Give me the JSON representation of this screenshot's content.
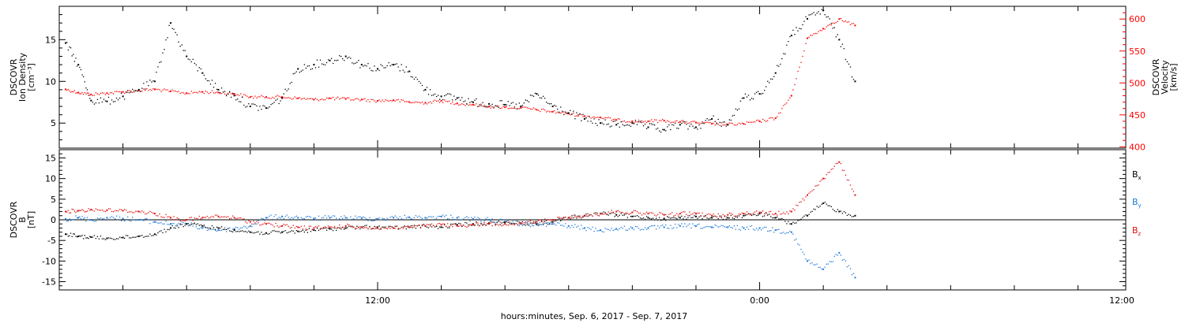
{
  "chart_data": [
    {
      "type": "scatter",
      "panel": "top",
      "ylabel": [
        "DSCOVR",
        "Ion Density",
        "[cm⁻³]"
      ],
      "ylabel2": [
        "DSCOVR",
        "Velocity",
        "[km/s]"
      ],
      "yticks_left": [
        "5",
        "10",
        "15"
      ],
      "yticks_right": [
        "400",
        "450",
        "500",
        "550",
        "600"
      ],
      "ylim_left": [
        2,
        19
      ],
      "ylim_right": [
        398,
        620
      ],
      "x_unit": "hours since 2017-09-06 02:00",
      "xlim": [
        0,
        33.5
      ],
      "colors": {
        "density": "#000000",
        "velocity": "#ff0000"
      },
      "series": [
        {
          "name": "Ion Density",
          "axis": "left",
          "x": [
            0.2,
            0.6,
            1.0,
            1.5,
            2.0,
            2.5,
            3.0,
            3.5,
            4.0,
            4.5,
            5.0,
            5.5,
            6.0,
            6.5,
            7.0,
            7.5,
            8.0,
            8.5,
            9.0,
            9.5,
            10.0,
            10.5,
            11.0,
            11.5,
            12.0,
            12.5,
            13.0,
            13.5,
            14.0,
            14.5,
            15.0,
            15.5,
            16.0,
            16.5,
            17.0,
            17.5,
            18.0,
            18.5,
            19.0,
            19.5,
            20.0,
            20.5,
            21.0,
            21.5,
            22.0,
            22.5,
            23.0,
            23.5,
            24.0,
            24.5,
            25.0
          ],
          "values": [
            14.6,
            12.0,
            7.7,
            7.6,
            8.2,
            9.0,
            10.0,
            17.0,
            13.0,
            11.0,
            9.0,
            8.3,
            7.0,
            6.8,
            8.0,
            11.5,
            12.0,
            12.5,
            13.0,
            12.0,
            11.5,
            12.0,
            11.2,
            9.0,
            8.2,
            8.0,
            7.5,
            7.3,
            7.2,
            7.0,
            8.5,
            7.0,
            6.2,
            5.5,
            5.0,
            4.8,
            5.0,
            4.5,
            4.2,
            4.8,
            4.5,
            5.5,
            4.8,
            8.0,
            8.5,
            11.0,
            15.5,
            17.5,
            18.5,
            15.0,
            10.0
          ]
        },
        {
          "name": "Velocity",
          "axis": "right",
          "x": [
            0.2,
            0.6,
            1.0,
            1.5,
            2.0,
            2.5,
            3.0,
            3.5,
            4.0,
            4.5,
            5.0,
            5.5,
            6.0,
            6.5,
            7.0,
            7.5,
            8.0,
            8.5,
            9.0,
            9.5,
            10.0,
            10.5,
            11.0,
            11.5,
            12.0,
            12.5,
            13.0,
            13.5,
            14.0,
            14.5,
            15.0,
            15.5,
            16.0,
            16.5,
            17.0,
            17.5,
            18.0,
            18.5,
            19.0,
            19.5,
            20.0,
            20.5,
            21.0,
            21.5,
            22.0,
            22.5,
            23.0,
            23.5,
            24.0,
            24.5,
            25.0
          ],
          "values": [
            490,
            485,
            482,
            484,
            486,
            488,
            490,
            487,
            484,
            486,
            485,
            483,
            478,
            478,
            478,
            476,
            474,
            476,
            475,
            474,
            472,
            473,
            470,
            469,
            472,
            468,
            466,
            463,
            462,
            461,
            458,
            455,
            452,
            448,
            446,
            442,
            440,
            440,
            441,
            439,
            438,
            436,
            435,
            436,
            440,
            445,
            480,
            570,
            585,
            600,
            590
          ]
        }
      ]
    },
    {
      "type": "scatter",
      "panel": "bottom",
      "ylabel": [
        "DSCOVR",
        "B",
        "[nT]"
      ],
      "yticks": [
        "-15",
        "-10",
        "-5",
        "0",
        "5",
        "10",
        "15"
      ],
      "ylim": [
        -17,
        17
      ],
      "x_unit": "hours since 2017-09-06 02:00",
      "xlim": [
        0,
        33.5
      ],
      "xticks": [
        "12:00",
        "0:00",
        "12:00"
      ],
      "xtick_positions": [
        10,
        22,
        34
      ],
      "xlabel": "hours:minutes, Sep.  6, 2017 - Sep.  7, 2017",
      "colors": {
        "Bx": "#000000",
        "By": "#1e78d8",
        "Bz": "#e01010"
      },
      "series": [
        {
          "name": "Bx",
          "label": "B",
          "sub": "x",
          "x": [
            0.2,
            0.6,
            1.0,
            1.5,
            2.0,
            2.5,
            3.0,
            3.5,
            4.0,
            4.5,
            5.0,
            5.5,
            6.0,
            6.5,
            7.0,
            7.5,
            8.0,
            8.5,
            9.0,
            9.5,
            10.0,
            10.5,
            11.0,
            11.5,
            12.0,
            12.5,
            13.0,
            13.5,
            14.0,
            14.5,
            15.0,
            15.5,
            16.0,
            16.5,
            17.0,
            17.5,
            18.0,
            18.5,
            19.0,
            19.5,
            20.0,
            20.5,
            21.0,
            21.5,
            22.0,
            22.5,
            23.0,
            23.5,
            24.0,
            24.5,
            25.0
          ],
          "values": [
            -3.5,
            -4.0,
            -4.2,
            -4.5,
            -4.3,
            -4.0,
            -3.5,
            -2.0,
            -1.0,
            -1.5,
            -2.0,
            -2.5,
            -3.0,
            -3.2,
            -3.0,
            -2.8,
            -2.5,
            -2.2,
            -2.0,
            -1.8,
            -1.8,
            -2.0,
            -1.8,
            -1.5,
            -1.8,
            -1.2,
            -1.0,
            -0.8,
            -0.6,
            -0.8,
            -1.0,
            -0.5,
            0.5,
            1.0,
            1.5,
            1.2,
            0.8,
            0.5,
            0.3,
            0.5,
            0.8,
            0.5,
            0.5,
            1.0,
            1.5,
            0.5,
            -1.0,
            1.0,
            4.0,
            2.0,
            1.0
          ]
        },
        {
          "name": "By",
          "label": "B",
          "sub": "y",
          "x": [
            0.2,
            0.6,
            1.0,
            1.5,
            2.0,
            2.5,
            3.0,
            3.5,
            4.0,
            4.5,
            5.0,
            5.5,
            6.0,
            6.5,
            7.0,
            7.5,
            8.0,
            8.5,
            9.0,
            9.5,
            10.0,
            10.5,
            11.0,
            11.5,
            12.0,
            12.5,
            13.0,
            13.5,
            14.0,
            14.5,
            15.0,
            15.5,
            16.0,
            16.5,
            17.0,
            17.5,
            18.0,
            18.5,
            19.0,
            19.5,
            20.0,
            20.5,
            21.0,
            21.5,
            22.0,
            22.5,
            23.0,
            23.5,
            24.0,
            24.5,
            25.0
          ],
          "values": [
            0.2,
            0.5,
            0.0,
            0.5,
            0.3,
            0.0,
            -0.5,
            -1.0,
            -1.0,
            -2.0,
            -2.5,
            -2.2,
            -1.5,
            0.5,
            0.8,
            0.5,
            0.3,
            0.5,
            0.5,
            0.4,
            0.2,
            0.5,
            0.6,
            0.5,
            0.8,
            0.5,
            0.2,
            0.0,
            -0.5,
            -1.0,
            -1.2,
            -1.0,
            -1.5,
            -2.0,
            -2.5,
            -2.2,
            -2.0,
            -2.0,
            -1.8,
            -1.5,
            -1.5,
            -1.8,
            -1.8,
            -2.0,
            -2.0,
            -2.5,
            -3.0,
            -10.0,
            -12.0,
            -8.0,
            -14.0
          ]
        },
        {
          "name": "Bz",
          "label": "B",
          "sub": "z",
          "x": [
            0.2,
            0.6,
            1.0,
            1.5,
            2.0,
            2.5,
            3.0,
            3.5,
            4.0,
            4.5,
            5.0,
            5.5,
            6.0,
            6.5,
            7.0,
            7.5,
            8.0,
            8.5,
            9.0,
            9.5,
            10.0,
            10.5,
            11.0,
            11.5,
            12.0,
            12.5,
            13.0,
            13.5,
            14.0,
            14.5,
            15.0,
            15.5,
            16.0,
            16.5,
            17.0,
            17.5,
            18.0,
            18.5,
            19.0,
            19.5,
            20.0,
            20.5,
            21.0,
            21.5,
            22.0,
            22.5,
            23.0,
            23.5,
            24.0,
            24.5,
            25.0
          ],
          "values": [
            2.0,
            2.2,
            2.5,
            2.3,
            2.2,
            2.0,
            1.5,
            0.5,
            0.0,
            0.5,
            0.8,
            0.5,
            -0.5,
            -1.0,
            -1.5,
            -1.8,
            -2.0,
            -1.8,
            -1.5,
            -1.8,
            -2.0,
            -2.0,
            -1.8,
            -1.5,
            -1.2,
            -1.5,
            -1.2,
            -1.0,
            -1.0,
            -0.8,
            -0.5,
            0.0,
            0.5,
            1.0,
            1.5,
            2.0,
            1.8,
            1.5,
            1.2,
            1.5,
            1.5,
            1.0,
            1.2,
            1.5,
            1.8,
            1.5,
            2.0,
            6.0,
            10.0,
            14.0,
            6.0
          ]
        }
      ]
    }
  ]
}
